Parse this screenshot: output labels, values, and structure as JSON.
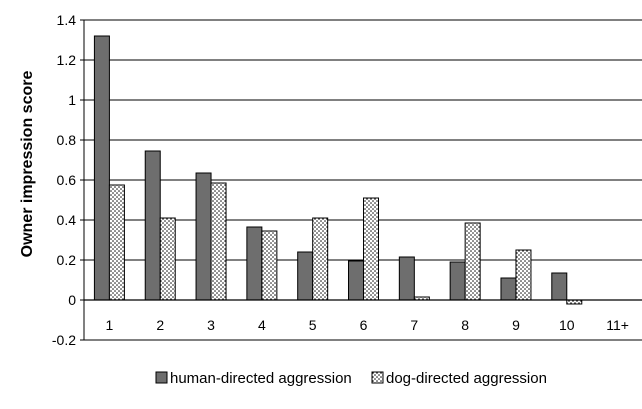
{
  "chart_data": {
    "type": "bar",
    "title": "",
    "xlabel": "",
    "ylabel": "Owner impression score",
    "ylim": [
      -0.2,
      1.4
    ],
    "yticks": [
      "-0.2",
      "0",
      "0.2",
      "0.4",
      "0.6",
      "0.8",
      "1",
      "1.2",
      "1.4"
    ],
    "grid": true,
    "legend_position": "bottom",
    "categories": [
      "1",
      "2",
      "3",
      "4",
      "5",
      "6",
      "7",
      "8",
      "9",
      "10",
      "11+"
    ],
    "series": [
      {
        "name": "human-directed aggression",
        "color": "#6e6e6e",
        "pattern": "solid",
        "values": [
          1.32,
          0.745,
          0.635,
          0.365,
          0.24,
          0.195,
          0.215,
          0.19,
          0.11,
          0.135,
          null
        ]
      },
      {
        "name": "dog-directed aggression",
        "color": "#ffffff",
        "pattern": "dotted",
        "values": [
          0.575,
          0.41,
          0.585,
          0.345,
          0.41,
          0.51,
          0.015,
          0.385,
          0.25,
          -0.02,
          null
        ]
      }
    ]
  }
}
